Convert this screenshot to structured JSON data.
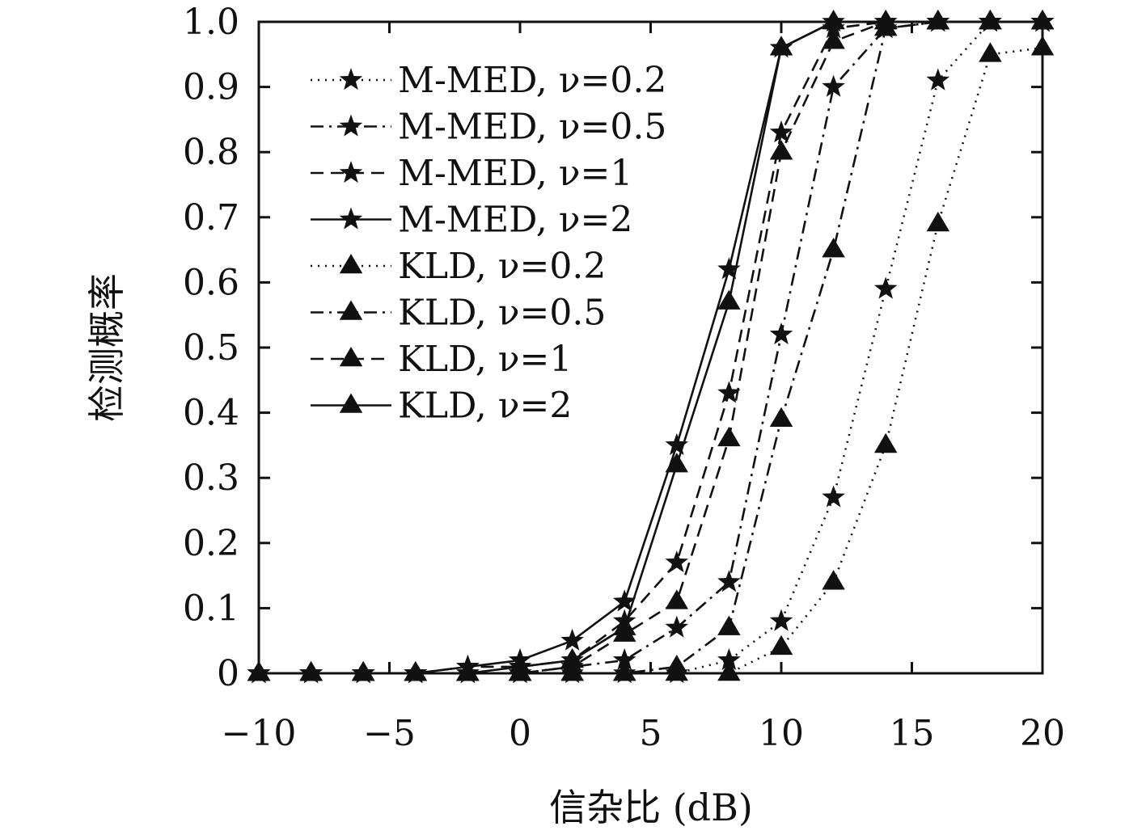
{
  "chart_data": {
    "type": "line",
    "xlabel": "信杂比 (dB)",
    "ylabel": "检测概率",
    "xlim": [
      -10,
      20
    ],
    "ylim": [
      0,
      1.0
    ],
    "xticks": [
      -10,
      -5,
      0,
      5,
      10,
      15,
      20
    ],
    "xtick_labels": [
      "−10",
      "−5",
      "0",
      "5",
      "10",
      "15",
      "20"
    ],
    "yticks": [
      0,
      0.1,
      0.2,
      0.3,
      0.4,
      0.5,
      0.6,
      0.7,
      0.8,
      0.9,
      1.0
    ],
    "ytick_labels": [
      "0",
      "0.1",
      "0.2",
      "0.3",
      "0.4",
      "0.5",
      "0.6",
      "0.7",
      "0.8",
      "0.9",
      "1.0"
    ],
    "grid": false,
    "legend_position": "top-left",
    "x": [
      -10,
      -8,
      -6,
      -4,
      -2,
      0,
      2,
      4,
      6,
      8,
      10,
      12,
      14,
      16,
      18,
      20
    ],
    "series": [
      {
        "name": "M-MED, ν=0.2",
        "marker": "star",
        "dash": "dotted",
        "values": [
          0,
          0,
          0,
          0,
          0,
          0,
          0,
          0,
          0,
          0.02,
          0.08,
          0.27,
          0.59,
          0.91,
          1.0,
          1.0
        ]
      },
      {
        "name": "M-MED, ν=0.5",
        "marker": "star",
        "dash": "dashdot",
        "values": [
          0,
          0,
          0,
          0,
          0,
          0,
          0.01,
          0.02,
          0.07,
          0.14,
          0.52,
          0.9,
          0.99,
          1.0,
          1.0,
          1.0
        ]
      },
      {
        "name": "M-MED, ν=1",
        "marker": "star",
        "dash": "dashed",
        "values": [
          0,
          0,
          0,
          0,
          0.01,
          0.01,
          0.02,
          0.08,
          0.17,
          0.43,
          0.83,
          0.99,
          1.0,
          1.0,
          1.0,
          1.0
        ]
      },
      {
        "name": "M-MED, ν=2",
        "marker": "star",
        "dash": "solid",
        "values": [
          0,
          0,
          0,
          0,
          0.01,
          0.02,
          0.05,
          0.11,
          0.35,
          0.62,
          0.96,
          1.0,
          1.0,
          1.0,
          1.0,
          1.0
        ]
      },
      {
        "name": "KLD, ν=0.2",
        "marker": "triangle",
        "dash": "dotted",
        "values": [
          0,
          0,
          0,
          0,
          0,
          0,
          0,
          0,
          0,
          0,
          0.04,
          0.14,
          0.35,
          0.69,
          0.95,
          0.96
        ]
      },
      {
        "name": "KLD, ν=0.5",
        "marker": "triangle",
        "dash": "dashdot",
        "values": [
          0,
          0,
          0,
          0,
          0,
          0,
          0,
          0,
          0.01,
          0.07,
          0.39,
          0.65,
          0.99,
          1.0,
          1.0,
          1.0
        ]
      },
      {
        "name": "KLD, ν=1",
        "marker": "triangle",
        "dash": "dashed",
        "values": [
          0,
          0,
          0,
          0,
          0,
          0,
          0.01,
          0.06,
          0.11,
          0.36,
          0.8,
          0.97,
          1.0,
          1.0,
          1.0,
          1.0
        ]
      },
      {
        "name": "KLD, ν=2",
        "marker": "triangle",
        "dash": "solid",
        "values": [
          0,
          0,
          0,
          0,
          0,
          0.01,
          0.02,
          0.07,
          0.32,
          0.57,
          0.96,
          1.0,
          1.0,
          1.0,
          1.0,
          1.0
        ]
      }
    ]
  }
}
